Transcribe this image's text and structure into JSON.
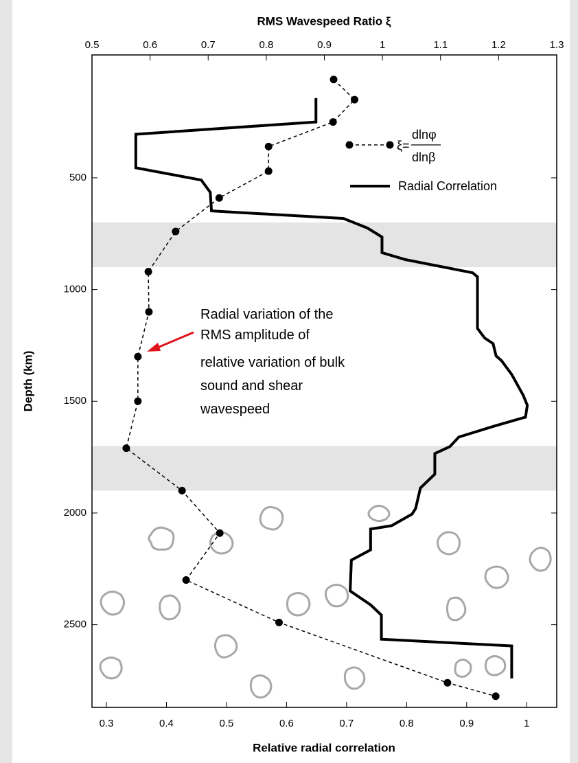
{
  "chart_data": {
    "type": "line",
    "title": "RMS Wavespeed Ratio ξ",
    "xlabel": "Relative radial correlation",
    "ylabel": "Depth (km)",
    "annotation": [
      "Radial variation of the",
      "RMS amplitude of",
      "relative variation of bulk",
      "sound and shear",
      "wavespeed"
    ],
    "legend_formula": {
      "lhs": "ξ=",
      "numerator": "dlnφ",
      "denominator": "dlnβ"
    },
    "xlim": [
      0.276,
      1.05
    ],
    "xticks": [
      0.3,
      0.4,
      0.5,
      0.6,
      0.7,
      0.8,
      0.9,
      1
    ],
    "x2lim": [
      0.5,
      1.3
    ],
    "x2ticks": [
      0.5,
      0.6,
      0.7,
      0.8,
      0.9,
      1,
      1.1,
      1.2,
      1.3
    ],
    "ylim": [
      -50,
      2870
    ],
    "yticks": [
      500,
      1000,
      1500,
      2000,
      2500
    ],
    "shaded_bands": [
      [
        700,
        900
      ],
      [
        1700,
        1900
      ]
    ],
    "series": [
      {
        "axis": "x2",
        "color": "#000000",
        "style": "dashed-markers",
        "x": [
          0.916,
          0.952,
          0.915,
          0.804,
          0.804,
          0.719,
          0.644,
          0.597,
          0.598,
          0.579,
          0.579,
          0.559,
          0.655,
          0.72,
          0.662,
          0.822,
          1.112,
          1.195
        ],
        "y": [
          60,
          150,
          250,
          360,
          470,
          590,
          740,
          920,
          1100,
          1300,
          1500,
          1710,
          1900,
          2090,
          2300,
          2490,
          2760,
          2820
        ]
      },
      {
        "name": "Radial Correlation",
        "color": "#000000",
        "style": "solid",
        "x": [
          0.649,
          0.649,
          0.349,
          0.349,
          0.458,
          0.473,
          0.475,
          0.695,
          0.735,
          0.759,
          0.759,
          0.798,
          0.91,
          0.918,
          0.918,
          0.93,
          0.944,
          0.949,
          0.958,
          0.975,
          0.994,
          1.001,
          0.998,
          0.946,
          0.887,
          0.872,
          0.847,
          0.847,
          0.823,
          0.815,
          0.809,
          0.775,
          0.74,
          0.74,
          0.708,
          0.706,
          0.74,
          0.758,
          0.758,
          0.975,
          0.975
        ],
        "y": [
          143,
          250,
          305,
          455,
          510,
          565,
          648,
          682,
          725,
          765,
          835,
          866,
          925,
          943,
          1174,
          1217,
          1242,
          1297,
          1318,
          1380,
          1472,
          1518,
          1571,
          1611,
          1660,
          1703,
          1734,
          1826,
          1888,
          1980,
          2005,
          2057,
          2072,
          2165,
          2211,
          2349,
          2411,
          2457,
          2565,
          2595,
          2740
        ]
      }
    ]
  }
}
